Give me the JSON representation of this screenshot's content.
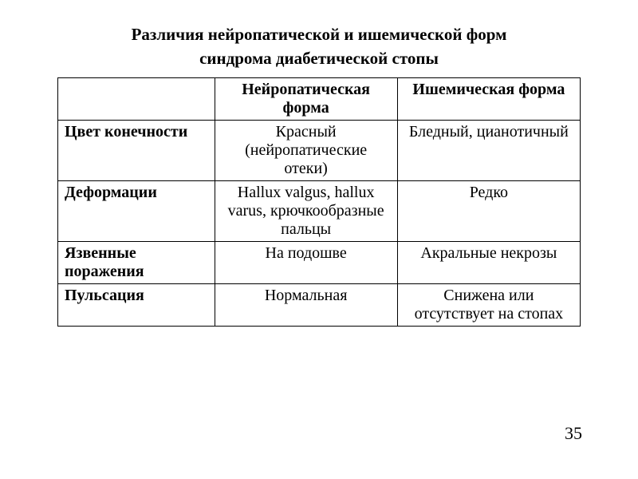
{
  "title_line1": "Различия нейропатической и ишемической форм",
  "title_line2": "синдрома диабетической стопы",
  "table": {
    "header_empty": "",
    "header_col1": "Нейропатическая форма",
    "header_col2": "Ишемическая форма",
    "rows": [
      {
        "label": "Цвет конечности",
        "col1": "Красный (нейропатические отеки)",
        "col2": "Бледный, цианотичный"
      },
      {
        "label": "Деформации",
        "col1": "Hallux valgus, hallux varus, крючкообразные пальцы",
        "col2": "Редко"
      },
      {
        "label": "Язвенные поражения",
        "col1": "На подошве",
        "col2": "Акральные некрозы"
      },
      {
        "label": "Пульсация",
        "col1": "Нормальная",
        "col2": "Снижена или отсутствует на стопах"
      }
    ]
  },
  "page_number": "35",
  "style": {
    "background_color": "#ffffff",
    "text_color": "#000000",
    "border_color": "#000000",
    "title_fontsize": 21,
    "cell_fontsize": 20,
    "page_number_fontsize": 22,
    "font_family": "Georgia, 'Times New Roman', serif"
  }
}
